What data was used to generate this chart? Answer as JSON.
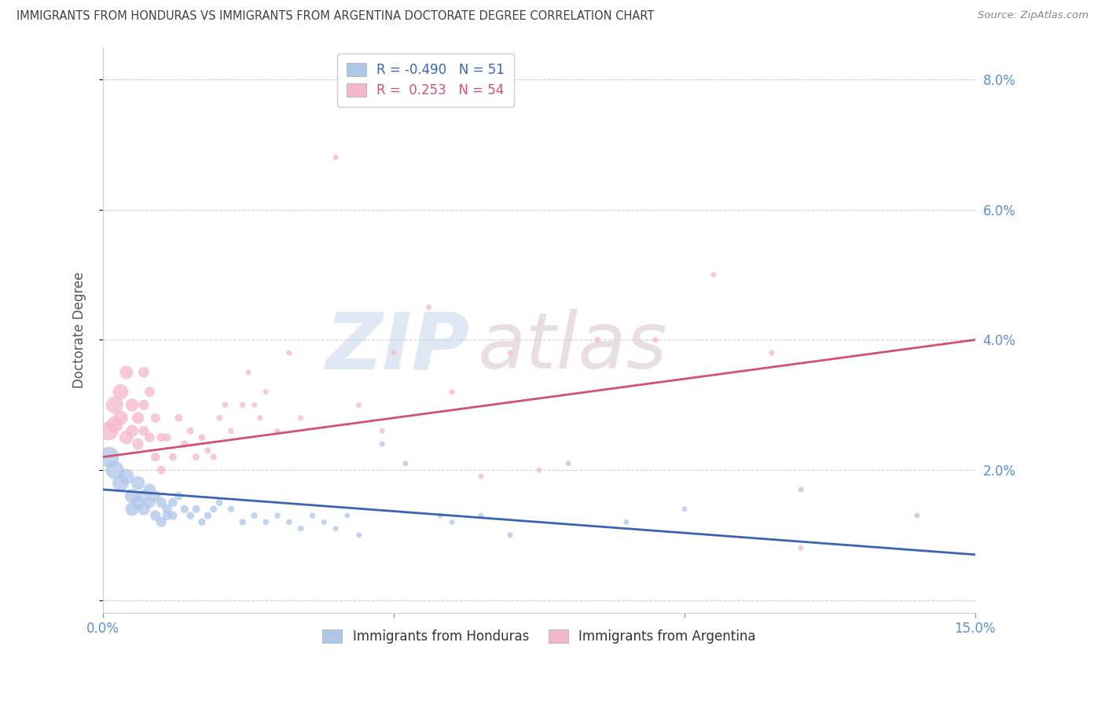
{
  "title": "IMMIGRANTS FROM HONDURAS VS IMMIGRANTS FROM ARGENTINA DOCTORATE DEGREE CORRELATION CHART",
  "source": "Source: ZipAtlas.com",
  "ylabel": "Doctorate Degree",
  "xmin": 0.0,
  "xmax": 0.15,
  "ymin": -0.002,
  "ymax": 0.085,
  "yticks": [
    0.0,
    0.02,
    0.04,
    0.06,
    0.08
  ],
  "ytick_labels": [
    "",
    "2.0%",
    "4.0%",
    "6.0%",
    "8.0%"
  ],
  "watermark_zip": "ZIP",
  "watermark_atlas": "atlas",
  "legend_blue_R": "-0.490",
  "legend_blue_N": "51",
  "legend_pink_R": "0.253",
  "legend_pink_N": "54",
  "legend_blue_label": "Immigrants from Honduras",
  "legend_pink_label": "Immigrants from Argentina",
  "blue_fill": "#aec6e8",
  "pink_fill": "#f5b8c8",
  "blue_line_color": "#3a65b5",
  "pink_line_color": "#d45070",
  "tick_color": "#5b8dd9",
  "grid_color": "#d0d0d0",
  "title_color": "#404040",
  "blue_line_x0": 0.0,
  "blue_line_y0": 0.017,
  "blue_line_x1": 0.15,
  "blue_line_y1": 0.007,
  "pink_line_x0": 0.0,
  "pink_line_y0": 0.022,
  "pink_line_x1": 0.15,
  "pink_line_y1": 0.04,
  "blue_scatter": [
    [
      0.001,
      0.022
    ],
    [
      0.002,
      0.02
    ],
    [
      0.003,
      0.018
    ],
    [
      0.004,
      0.019
    ],
    [
      0.005,
      0.016
    ],
    [
      0.005,
      0.014
    ],
    [
      0.006,
      0.018
    ],
    [
      0.006,
      0.015
    ],
    [
      0.007,
      0.016
    ],
    [
      0.007,
      0.014
    ],
    [
      0.008,
      0.017
    ],
    [
      0.008,
      0.015
    ],
    [
      0.009,
      0.016
    ],
    [
      0.009,
      0.013
    ],
    [
      0.01,
      0.015
    ],
    [
      0.01,
      0.012
    ],
    [
      0.011,
      0.014
    ],
    [
      0.011,
      0.013
    ],
    [
      0.012,
      0.015
    ],
    [
      0.012,
      0.013
    ],
    [
      0.013,
      0.016
    ],
    [
      0.014,
      0.014
    ],
    [
      0.015,
      0.013
    ],
    [
      0.016,
      0.014
    ],
    [
      0.017,
      0.012
    ],
    [
      0.018,
      0.013
    ],
    [
      0.019,
      0.014
    ],
    [
      0.02,
      0.015
    ],
    [
      0.022,
      0.014
    ],
    [
      0.024,
      0.012
    ],
    [
      0.026,
      0.013
    ],
    [
      0.028,
      0.012
    ],
    [
      0.03,
      0.013
    ],
    [
      0.032,
      0.012
    ],
    [
      0.034,
      0.011
    ],
    [
      0.036,
      0.013
    ],
    [
      0.038,
      0.012
    ],
    [
      0.04,
      0.011
    ],
    [
      0.042,
      0.013
    ],
    [
      0.044,
      0.01
    ],
    [
      0.048,
      0.024
    ],
    [
      0.052,
      0.021
    ],
    [
      0.058,
      0.013
    ],
    [
      0.06,
      0.012
    ],
    [
      0.065,
      0.013
    ],
    [
      0.07,
      0.01
    ],
    [
      0.08,
      0.021
    ],
    [
      0.09,
      0.012
    ],
    [
      0.1,
      0.014
    ],
    [
      0.12,
      0.017
    ],
    [
      0.14,
      0.013
    ]
  ],
  "pink_scatter": [
    [
      0.001,
      0.026
    ],
    [
      0.002,
      0.03
    ],
    [
      0.002,
      0.027
    ],
    [
      0.003,
      0.032
    ],
    [
      0.003,
      0.028
    ],
    [
      0.004,
      0.025
    ],
    [
      0.004,
      0.035
    ],
    [
      0.005,
      0.03
    ],
    [
      0.005,
      0.026
    ],
    [
      0.006,
      0.028
    ],
    [
      0.006,
      0.024
    ],
    [
      0.007,
      0.035
    ],
    [
      0.007,
      0.03
    ],
    [
      0.007,
      0.026
    ],
    [
      0.008,
      0.032
    ],
    [
      0.008,
      0.025
    ],
    [
      0.009,
      0.028
    ],
    [
      0.009,
      0.022
    ],
    [
      0.01,
      0.025
    ],
    [
      0.01,
      0.02
    ],
    [
      0.011,
      0.025
    ],
    [
      0.012,
      0.022
    ],
    [
      0.013,
      0.028
    ],
    [
      0.014,
      0.024
    ],
    [
      0.015,
      0.026
    ],
    [
      0.016,
      0.022
    ],
    [
      0.017,
      0.025
    ],
    [
      0.018,
      0.023
    ],
    [
      0.019,
      0.022
    ],
    [
      0.02,
      0.028
    ],
    [
      0.021,
      0.03
    ],
    [
      0.022,
      0.026
    ],
    [
      0.024,
      0.03
    ],
    [
      0.025,
      0.035
    ],
    [
      0.026,
      0.03
    ],
    [
      0.027,
      0.028
    ],
    [
      0.028,
      0.032
    ],
    [
      0.03,
      0.026
    ],
    [
      0.032,
      0.038
    ],
    [
      0.034,
      0.028
    ],
    [
      0.04,
      0.068
    ],
    [
      0.044,
      0.03
    ],
    [
      0.048,
      0.026
    ],
    [
      0.05,
      0.038
    ],
    [
      0.056,
      0.045
    ],
    [
      0.06,
      0.032
    ],
    [
      0.065,
      0.019
    ],
    [
      0.07,
      0.038
    ],
    [
      0.075,
      0.02
    ],
    [
      0.085,
      0.04
    ],
    [
      0.095,
      0.04
    ],
    [
      0.105,
      0.05
    ],
    [
      0.115,
      0.038
    ],
    [
      0.12,
      0.008
    ]
  ],
  "blue_sizes": [
    350,
    280,
    220,
    200,
    180,
    160,
    160,
    140,
    140,
    130,
    120,
    110,
    105,
    95,
    90,
    85,
    80,
    75,
    70,
    65,
    60,
    55,
    50,
    50,
    45,
    45,
    40,
    40,
    35,
    35,
    35,
    30,
    30,
    30,
    28,
    28,
    25,
    25,
    25,
    25,
    25,
    25,
    25,
    25,
    25,
    25,
    25,
    25,
    25,
    25,
    25
  ],
  "pink_sizes": [
    300,
    250,
    220,
    200,
    180,
    160,
    150,
    140,
    130,
    120,
    110,
    100,
    95,
    90,
    85,
    80,
    75,
    70,
    65,
    60,
    55,
    50,
    50,
    45,
    45,
    40,
    38,
    35,
    33,
    30,
    30,
    28,
    28,
    25,
    25,
    25,
    25,
    25,
    25,
    25,
    25,
    25,
    25,
    25,
    25,
    25,
    25,
    25,
    25,
    25,
    25,
    25,
    25,
    25
  ]
}
